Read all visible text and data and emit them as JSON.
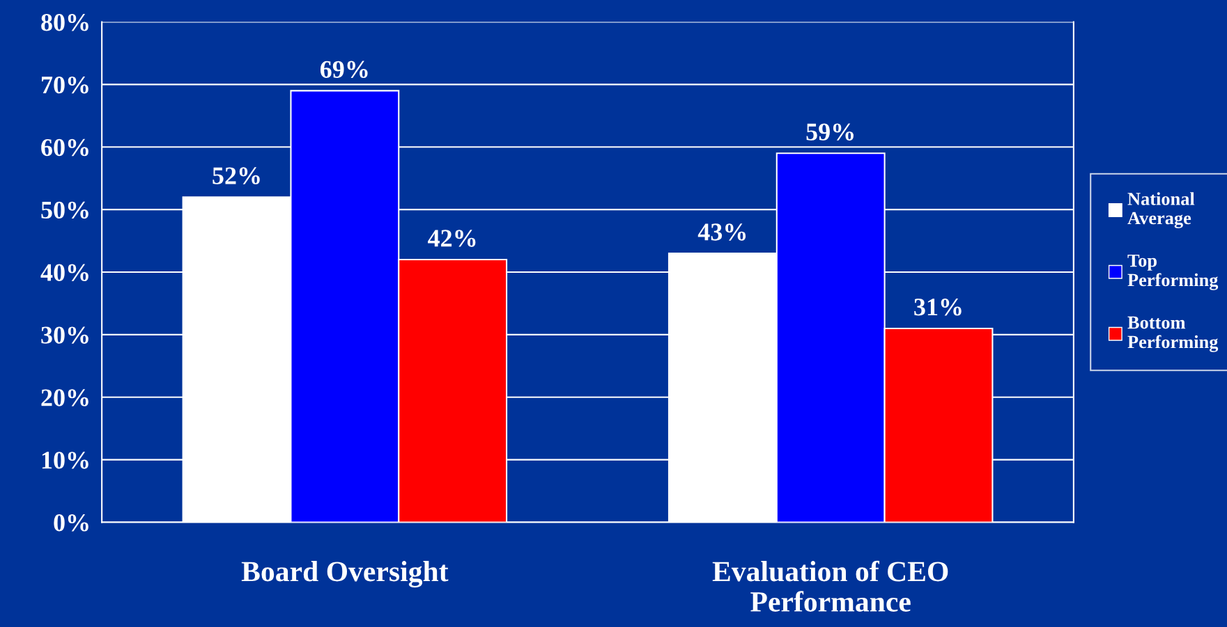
{
  "chart_data": {
    "type": "bar",
    "categories": [
      "Board Oversight",
      "Evaluation of CEO\nPerformance"
    ],
    "series": [
      {
        "name": "National\nAverage",
        "color": "#ffffff",
        "values": [
          52,
          43
        ]
      },
      {
        "name": "Top\nPerforming",
        "color": "#0000ff",
        "values": [
          69,
          59
        ]
      },
      {
        "name": "Bottom\nPerforming",
        "color": "#ff0000",
        "values": [
          42,
          31
        ]
      }
    ],
    "ylim": [
      0,
      80
    ],
    "yticks": [
      {
        "value": 0,
        "label": "0%"
      },
      {
        "value": 10,
        "label": "10%"
      },
      {
        "value": 20,
        "label": "20%"
      },
      {
        "value": 30,
        "label": "30%"
      },
      {
        "value": 40,
        "label": "40%"
      },
      {
        "value": 50,
        "label": "50%"
      },
      {
        "value": 60,
        "label": "60%"
      },
      {
        "value": 70,
        "label": "70%"
      },
      {
        "value": 80,
        "label": "80%"
      }
    ],
    "value_labels": [
      [
        "52%",
        "43%"
      ],
      [
        "69%",
        "59%"
      ],
      [
        "42%",
        "31%"
      ]
    ],
    "grid": "y",
    "legend": "right"
  }
}
